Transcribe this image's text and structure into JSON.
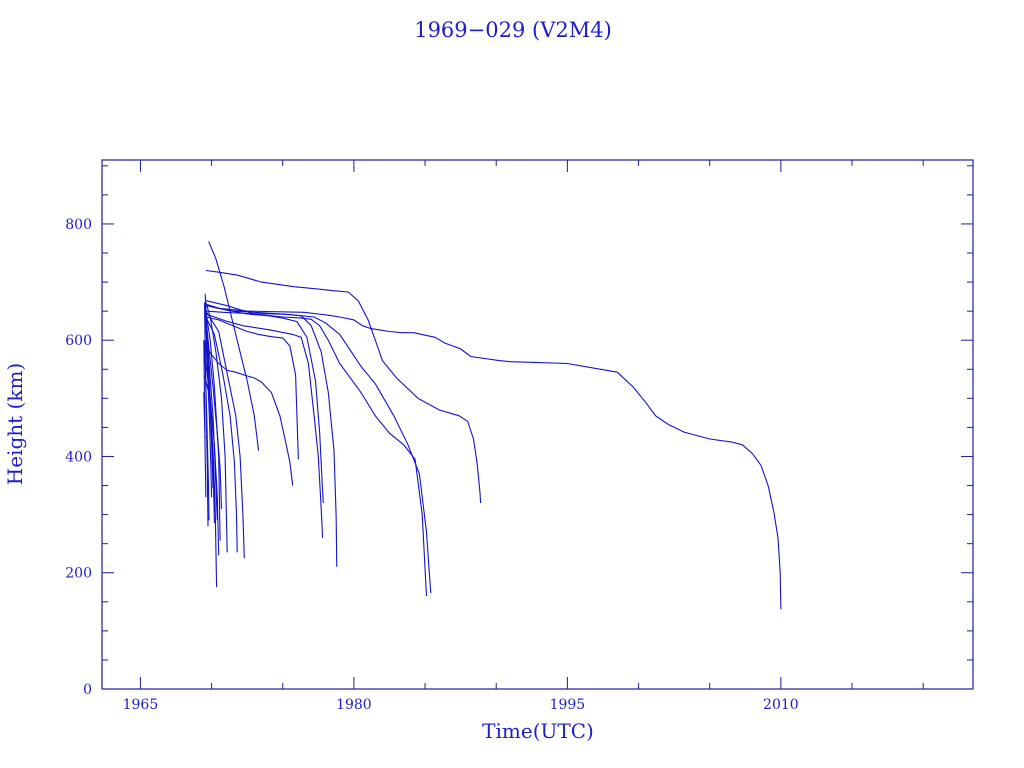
{
  "chart_data": {
    "type": "line",
    "title": "1969−029 (V2M4)",
    "xlabel": "Time(UTC)",
    "ylabel": "Height (km)",
    "xlim": [
      1962.3,
      2023.5
    ],
    "ylim": [
      0,
      910
    ],
    "x_ticks": [
      1965,
      1980,
      1995,
      2010
    ],
    "y_ticks": [
      0,
      200,
      400,
      600,
      800
    ],
    "grid": false,
    "color": "#1313c8",
    "series": [
      {
        "x": [
          1969.6,
          1970.4,
          1972.5,
          1976.5,
          1977.5,
          1978.2,
          1979.0,
          1980.0,
          1980.6,
          1981.2,
          1982.5,
          1983.4,
          1984.2,
          1985.7,
          1986.4,
          1987.5,
          1988.2,
          1990.2,
          1991.0,
          1992.5,
          1995.0,
          1998.5,
          1999.6,
          2000.5,
          2001.2,
          2002.1,
          2003.2,
          2005.0,
          2006.5,
          2007.3,
          2008.0,
          2008.6,
          2009.1,
          2009.5,
          2009.8,
          2009.95,
          2010.0
        ],
        "y": [
          660,
          655,
          650,
          648,
          645,
          643,
          640,
          635,
          625,
          620,
          615,
          613,
          613,
          605,
          595,
          585,
          572,
          565,
          563,
          562,
          560,
          545,
          520,
          493,
          470,
          455,
          442,
          430,
          425,
          420,
          405,
          385,
          350,
          305,
          260,
          200,
          137
        ]
      },
      {
        "x": [
          1969.6,
          1970.5,
          1971.8,
          1973.5,
          1975.8,
          1977.5,
          1978.6,
          1979.6,
          1980.3,
          1981.0,
          1981.5,
          1982.0,
          1983.0,
          1984.5,
          1986.0,
          1987.4,
          1988.0,
          1988.4,
          1988.65,
          1988.85,
          1988.9
        ],
        "y": [
          720,
          717,
          712,
          700,
          692,
          688,
          685,
          683,
          668,
          635,
          600,
          565,
          535,
          500,
          480,
          470,
          460,
          430,
          390,
          340,
          320
        ]
      },
      {
        "x": [
          1969.6,
          1970.8,
          1972.5,
          1974.5,
          1975.5,
          1976.3,
          1977.2,
          1978.0,
          1979.0,
          1980.5,
          1981.5,
          1982.8,
          1983.8,
          1984.6,
          1985.1,
          1985.3,
          1985.4
        ],
        "y": [
          650,
          648,
          646,
          645,
          644,
          642,
          640,
          630,
          610,
          555,
          525,
          470,
          420,
          370,
          270,
          200,
          165
        ]
      },
      {
        "x": [
          1969.6,
          1971.0,
          1973.0,
          1975.0,
          1976.3,
          1977.0,
          1977.6,
          1978.2,
          1979.0,
          1980.5,
          1981.5,
          1982.5,
          1983.5,
          1984.3,
          1984.8,
          1985.1
        ],
        "y": [
          668,
          660,
          645,
          640,
          638,
          636,
          625,
          600,
          560,
          510,
          470,
          440,
          420,
          395,
          300,
          160
        ]
      },
      {
        "x": [
          1969.6,
          1970.5,
          1971.5,
          1972.5,
          1973.3,
          1974.2,
          1975.0,
          1975.5,
          1975.9,
          1976.05,
          1976.1
        ],
        "y": [
          640,
          635,
          625,
          615,
          610,
          606,
          604,
          590,
          540,
          430,
          395
        ]
      },
      {
        "x": [
          1969.6,
          1970.0,
          1970.5,
          1971.1,
          1971.7,
          1972.3,
          1973.0,
          1973.5,
          1974.2,
          1974.8,
          1975.2,
          1975.5,
          1975.7
        ],
        "y": [
          590,
          575,
          560,
          548,
          545,
          540,
          535,
          528,
          510,
          470,
          425,
          390,
          350
        ]
      },
      {
        "x": [
          1969.6,
          1971.0,
          1972.5,
          1974.0,
          1975.0,
          1976.0,
          1976.7,
          1977.3,
          1977.6,
          1977.78,
          1977.85
        ],
        "y": [
          660,
          652,
          645,
          642,
          638,
          632,
          605,
          530,
          440,
          350,
          320
        ]
      },
      {
        "x": [
          1969.6,
          1971.0,
          1972.2,
          1974.0,
          1975.7,
          1976.3,
          1976.8,
          1977.2,
          1977.5,
          1977.7,
          1977.8
        ],
        "y": [
          645,
          633,
          625,
          618,
          610,
          605,
          560,
          470,
          400,
          310,
          260
        ]
      },
      {
        "x": [
          1969.6,
          1970.5,
          1971.5,
          1973.0,
          1975.0,
          1976.3,
          1977.0,
          1977.7,
          1978.2,
          1978.6,
          1978.75,
          1978.8
        ],
        "y": [
          662,
          655,
          650,
          648,
          645,
          642,
          625,
          580,
          510,
          410,
          300,
          210
        ]
      },
      {
        "x": [
          1969.8,
          1970.3,
          1970.9,
          1971.4,
          1971.9,
          1972.5,
          1973.0,
          1973.3
        ],
        "y": [
          770,
          740,
          690,
          640,
          590,
          530,
          470,
          410
        ]
      },
      {
        "x": [
          1969.6,
          1970.5,
          1971.2,
          1971.7,
          1972.0,
          1972.2,
          1972.3
        ],
        "y": [
          650,
          615,
          530,
          470,
          400,
          300,
          225
        ]
      },
      {
        "x": [
          1969.6,
          1970.2,
          1970.8,
          1971.3,
          1971.6,
          1971.75,
          1971.8
        ],
        "y": [
          640,
          610,
          540,
          470,
          390,
          300,
          235
        ]
      },
      {
        "x": [
          1969.6,
          1969.9,
          1970.3,
          1970.7,
          1970.95,
          1971.1
        ],
        "y": [
          665,
          640,
          580,
          500,
          400,
          235
        ]
      },
      {
        "x": [
          1969.6,
          1969.9,
          1970.2,
          1970.5,
          1970.6
        ],
        "y": [
          650,
          600,
          520,
          400,
          255
        ]
      },
      {
        "x": [
          1969.55,
          1969.8,
          1970.1,
          1970.3,
          1970.4
        ],
        "y": [
          650,
          570,
          470,
          350,
          290
        ]
      },
      {
        "x": [
          1969.55,
          1969.75,
          1969.95,
          1970.1,
          1970.2
        ],
        "y": [
          680,
          580,
          470,
          380,
          305
        ]
      },
      {
        "x": [
          1969.6,
          1969.8,
          1970.1,
          1970.4,
          1970.6,
          1970.7
        ],
        "y": [
          640,
          590,
          520,
          440,
          380,
          310
        ]
      },
      {
        "x": [
          1969.6,
          1969.75,
          1969.9,
          1970.0,
          1970.1
        ],
        "y": [
          630,
          560,
          480,
          420,
          345
        ]
      },
      {
        "x": [
          1969.55,
          1969.7,
          1969.85,
          1969.95,
          1970.0
        ],
        "y": [
          660,
          560,
          460,
          380,
          330
        ]
      },
      {
        "x": [
          1969.5,
          1969.6,
          1969.7,
          1969.78,
          1969.82
        ],
        "y": [
          600,
          520,
          430,
          350,
          290
        ]
      },
      {
        "x": [
          1969.5,
          1969.55,
          1969.62,
          1969.7,
          1969.75
        ],
        "y": [
          665,
          590,
          480,
          380,
          280
        ]
      },
      {
        "x": [
          1969.45,
          1969.5,
          1969.55,
          1969.6
        ],
        "y": [
          600,
          500,
          400,
          330
        ]
      },
      {
        "x": [
          1969.45,
          1969.5,
          1969.55
        ],
        "y": [
          510,
          460,
          430
        ]
      },
      {
        "x": [
          1969.5,
          1969.9,
          1970.2,
          1970.4,
          1970.5
        ],
        "y": [
          540,
          500,
          420,
          330,
          230
        ]
      },
      {
        "x": [
          1969.55,
          1969.9,
          1970.1,
          1970.25,
          1970.35
        ],
        "y": [
          570,
          500,
          410,
          320,
          175
        ]
      },
      {
        "x": [
          1969.55,
          1969.8,
          1970.0,
          1970.15,
          1970.2
        ],
        "y": [
          600,
          530,
          440,
          340,
          285
        ]
      }
    ]
  }
}
